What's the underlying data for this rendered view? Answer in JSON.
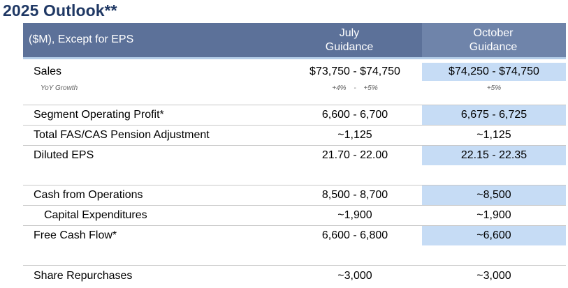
{
  "title": "2025 Outlook**",
  "header": {
    "units_label": "($M), Except for EPS",
    "july_line1": "July",
    "july_line2": "Guidance",
    "october_line1": "October",
    "october_line2": "Guidance"
  },
  "rows": {
    "sales": {
      "label": "Sales",
      "july": "$73,750 - $74,750",
      "october": "$74,250 - $74,750"
    },
    "yoy": {
      "label": "YoY Growth",
      "july_low": "+4%",
      "july_dash": "-",
      "july_high": "+5%",
      "october": "+5%"
    },
    "segment": {
      "label": "Segment Operating Profit*",
      "july": "6,600 - 6,700",
      "october": "6,675 - 6,725"
    },
    "pension": {
      "label": "Total FAS/CAS Pension Adjustment",
      "july": "~1,125",
      "october": "~1,125"
    },
    "eps": {
      "label": "Diluted EPS",
      "july": "21.70 - 22.00",
      "october": "22.15 - 22.35"
    },
    "cfo": {
      "label": "Cash from Operations",
      "july": "8,500 - 8,700",
      "october": "~8,500"
    },
    "capex": {
      "label": "Capital Expenditures",
      "july": "~1,900",
      "october": "~1,900"
    },
    "fcf": {
      "label": "Free Cash Flow*",
      "july": "6,600 - 6,800",
      "october": "~6,600"
    },
    "repurchases": {
      "label": "Share Repurchases",
      "july": "~3,000",
      "october": "~3,000"
    }
  },
  "colors": {
    "title": "#1f3864",
    "header_bg": "#5c7199",
    "highlight": "#c6dcf5"
  }
}
